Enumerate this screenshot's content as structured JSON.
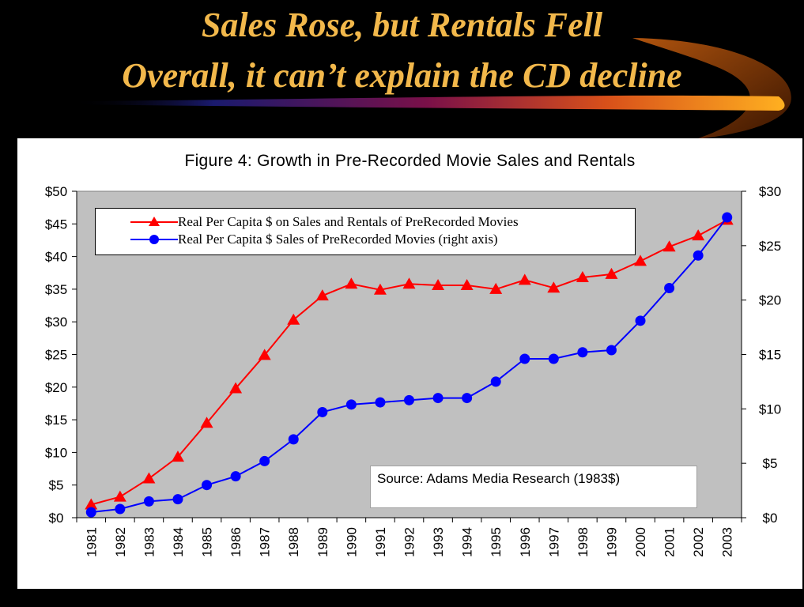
{
  "slide": {
    "title_line1": "Sales Rose, but Rentals Fell",
    "title_line2": "Overall, it can’t explain the CD decline"
  },
  "colors": {
    "background": "#000000",
    "title": "#f2b84b",
    "plot_area": "#c0c0c0",
    "series_total": "#ff0000",
    "series_sales": "#0000ff"
  },
  "chart_data": {
    "type": "line",
    "title": "Figure 4: Growth in Pre-Recorded Movie Sales and Rentals",
    "x": [
      "1981",
      "1982",
      "1983",
      "1984",
      "1985",
      "1986",
      "1987",
      "1988",
      "1989",
      "1990",
      "1991",
      "1992",
      "1993",
      "1994",
      "1995",
      "1996",
      "1997",
      "1998",
      "1999",
      "2000",
      "2001",
      "2002",
      "2003"
    ],
    "y_left": {
      "min": 0,
      "max": 50,
      "step": 5,
      "tick_labels": [
        "$0",
        "$5",
        "$10",
        "$15",
        "$20",
        "$25",
        "$30",
        "$35",
        "$40",
        "$45",
        "$50"
      ]
    },
    "y_right": {
      "min": 0,
      "max": 30,
      "step": 5,
      "tick_labels": [
        "$0",
        "$5",
        "$10",
        "$15",
        "$20",
        "$25",
        "$30"
      ]
    },
    "grid": false,
    "legend_position": "top-left inside plot",
    "series": [
      {
        "name": "Real Per Capita $ on Sales and Rentals of PreRecorded Movies",
        "axis": "left",
        "marker": "triangle",
        "color": "#ff0000",
        "values": [
          2.0,
          3.2,
          6.0,
          9.3,
          14.5,
          19.8,
          24.9,
          30.3,
          34.0,
          35.8,
          34.9,
          35.8,
          35.6,
          35.6,
          35.0,
          36.4,
          35.2,
          36.8,
          37.3,
          39.3,
          41.5,
          43.2,
          45.6
        ]
      },
      {
        "name": "Real Per Capita $ Sales of PreRecorded Movies (right axis)",
        "axis": "right",
        "marker": "circle",
        "color": "#0000ff",
        "values": [
          0.5,
          0.8,
          1.5,
          1.7,
          3.0,
          3.8,
          5.2,
          7.2,
          9.7,
          10.4,
          10.6,
          10.8,
          11.0,
          11.0,
          12.5,
          14.6,
          14.6,
          15.2,
          15.4,
          18.1,
          21.1,
          24.1,
          27.6
        ]
      }
    ],
    "annotation": "Source: Adams Media Research (1983$)"
  }
}
